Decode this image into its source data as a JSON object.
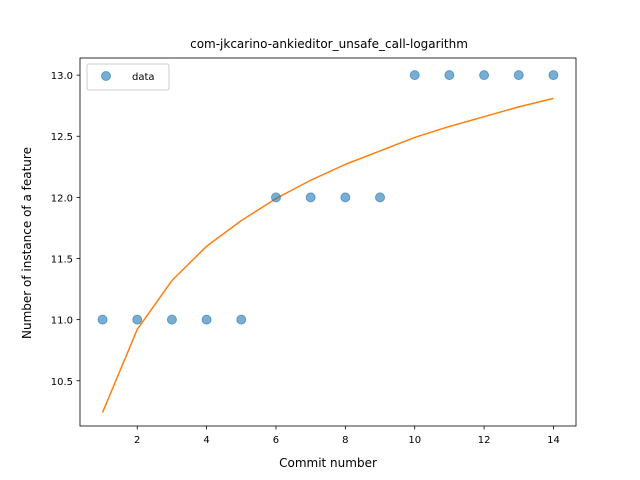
{
  "chart_data": {
    "type": "scatter",
    "title": "com-jkcarino-ankieditor_unsafe_call-logarithm",
    "xlabel": "Commit number",
    "ylabel": "Number of instance of a feature",
    "xlim": [
      0.35,
      14.65
    ],
    "ylim": [
      10.13,
      13.14
    ],
    "xticks": [
      2,
      4,
      6,
      8,
      10,
      12,
      14
    ],
    "yticks": [
      10.5,
      11.0,
      11.5,
      12.0,
      12.5,
      13.0
    ],
    "grid": false,
    "legend": {
      "position": "upper-left",
      "entries": [
        "data"
      ]
    },
    "series": [
      {
        "name": "data",
        "kind": "scatter",
        "color": "#1f77b4",
        "x": [
          1,
          2,
          3,
          4,
          5,
          6,
          7,
          8,
          9,
          10,
          11,
          12,
          13,
          14
        ],
        "y": [
          11,
          11,
          11,
          11,
          11,
          12,
          12,
          12,
          12,
          13,
          13,
          13,
          13,
          13
        ]
      },
      {
        "kind": "line",
        "color": "#ff7f0e",
        "x": [
          1,
          2,
          3,
          4,
          5,
          6,
          7,
          8,
          9,
          10,
          11,
          12,
          13,
          14
        ],
        "y": [
          10.24,
          10.92,
          11.32,
          11.6,
          11.81,
          11.99,
          12.14,
          12.27,
          12.38,
          12.49,
          12.58,
          12.66,
          12.74,
          12.81
        ]
      }
    ]
  }
}
